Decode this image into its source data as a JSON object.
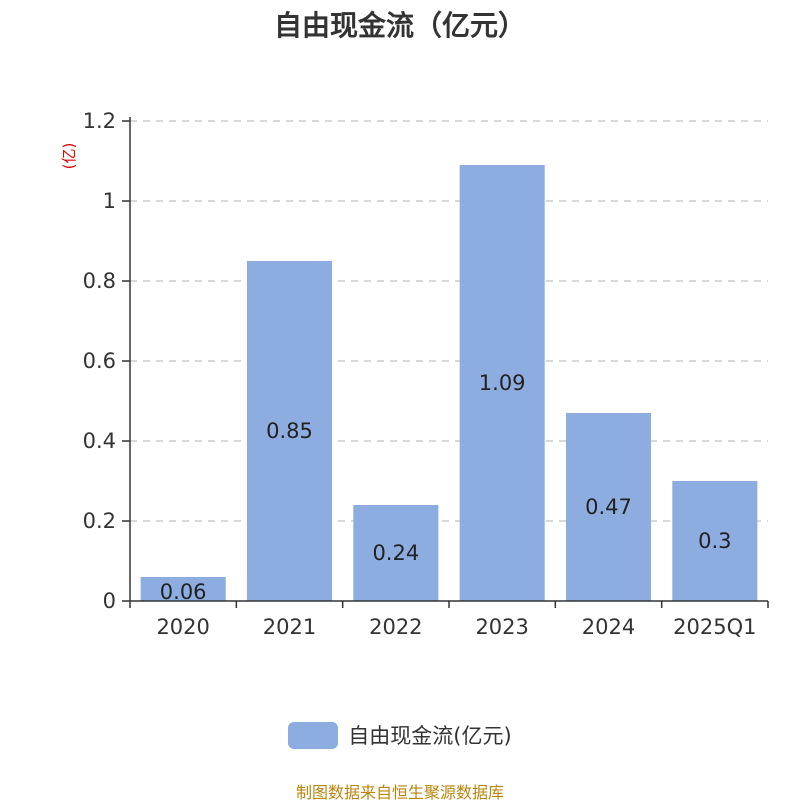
{
  "chart_data": {
    "type": "bar",
    "title": "自由现金流（亿元）",
    "ylabel": "(亿)",
    "categories": [
      "2020",
      "2021",
      "2022",
      "2023",
      "2024",
      "2025Q1"
    ],
    "series": [
      {
        "name": "自由现金流(亿元)",
        "values": [
          0.06,
          0.85,
          0.24,
          1.09,
          0.47,
          0.3
        ]
      }
    ],
    "ylim": [
      0,
      1.2
    ],
    "yticks": [
      "0",
      "0.2",
      "0.4",
      "0.6",
      "0.8",
      "1",
      "1.2"
    ],
    "grid": true,
    "legend_position": "bottom",
    "bar_color": "#8dade0",
    "ylabel_color": "#e00000"
  },
  "footer": {
    "source": "制图数据来自恒生聚源数据库"
  }
}
